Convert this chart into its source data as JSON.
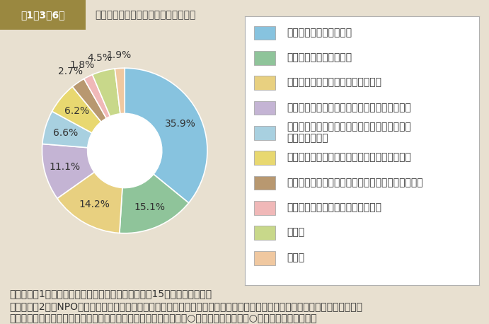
{
  "title_label": "地域の活動などへの参加を妨げる要因",
  "title_prefix": "第1－3－6図",
  "values": [
    35.9,
    15.1,
    14.2,
    11.1,
    6.6,
    6.2,
    2.7,
    1.8,
    4.5,
    1.9
  ],
  "colors": [
    "#87c3df",
    "#8fc49a",
    "#e8d080",
    "#c4b4d4",
    "#a8d0e0",
    "#e8d870",
    "#b89870",
    "#f0b8b8",
    "#c8d88a",
    "#f0c8a0"
  ],
  "labels": [
    "活動する時間がないこと",
    "全く興味がわかないこと",
    "参加するきっかけが得られないこと",
    "身近に団体や活動内容に関する情報がないこと",
    "身近に参加したいと思う適当な活動や共感する\n団体がないこと",
    "身近に一緒に参加できる適当な人がいないこと",
    "活動によって得られるメリットが期待できないこと",
    "家族や職場の理解が得られないこと",
    "その他",
    "無回答"
  ],
  "pct_labels": [
    "35.9%",
    "15.1%",
    "14.2%",
    "11.1%",
    "6.6%",
    "6.2%",
    "2.7%",
    "1.8%",
    "4.5%",
    "1.9%"
  ],
  "bg_color": "#e8e0d0",
  "header_bg": "#9a8840",
  "note_line1": "（備考）　1．内閣府「国民生活選好度調査」（平成15年度）より作成。",
  "note_line2": "　　　　　2．「NPOやボランティア，地域での活動に参加する際に苦労すること，または参加できない要因となることはどんな",
  "note_line3": "　　　　　　　ことですか。あなたにとってあてはまるものに１つ○をお付け下さい。（○は１つ）」への回答。"
}
